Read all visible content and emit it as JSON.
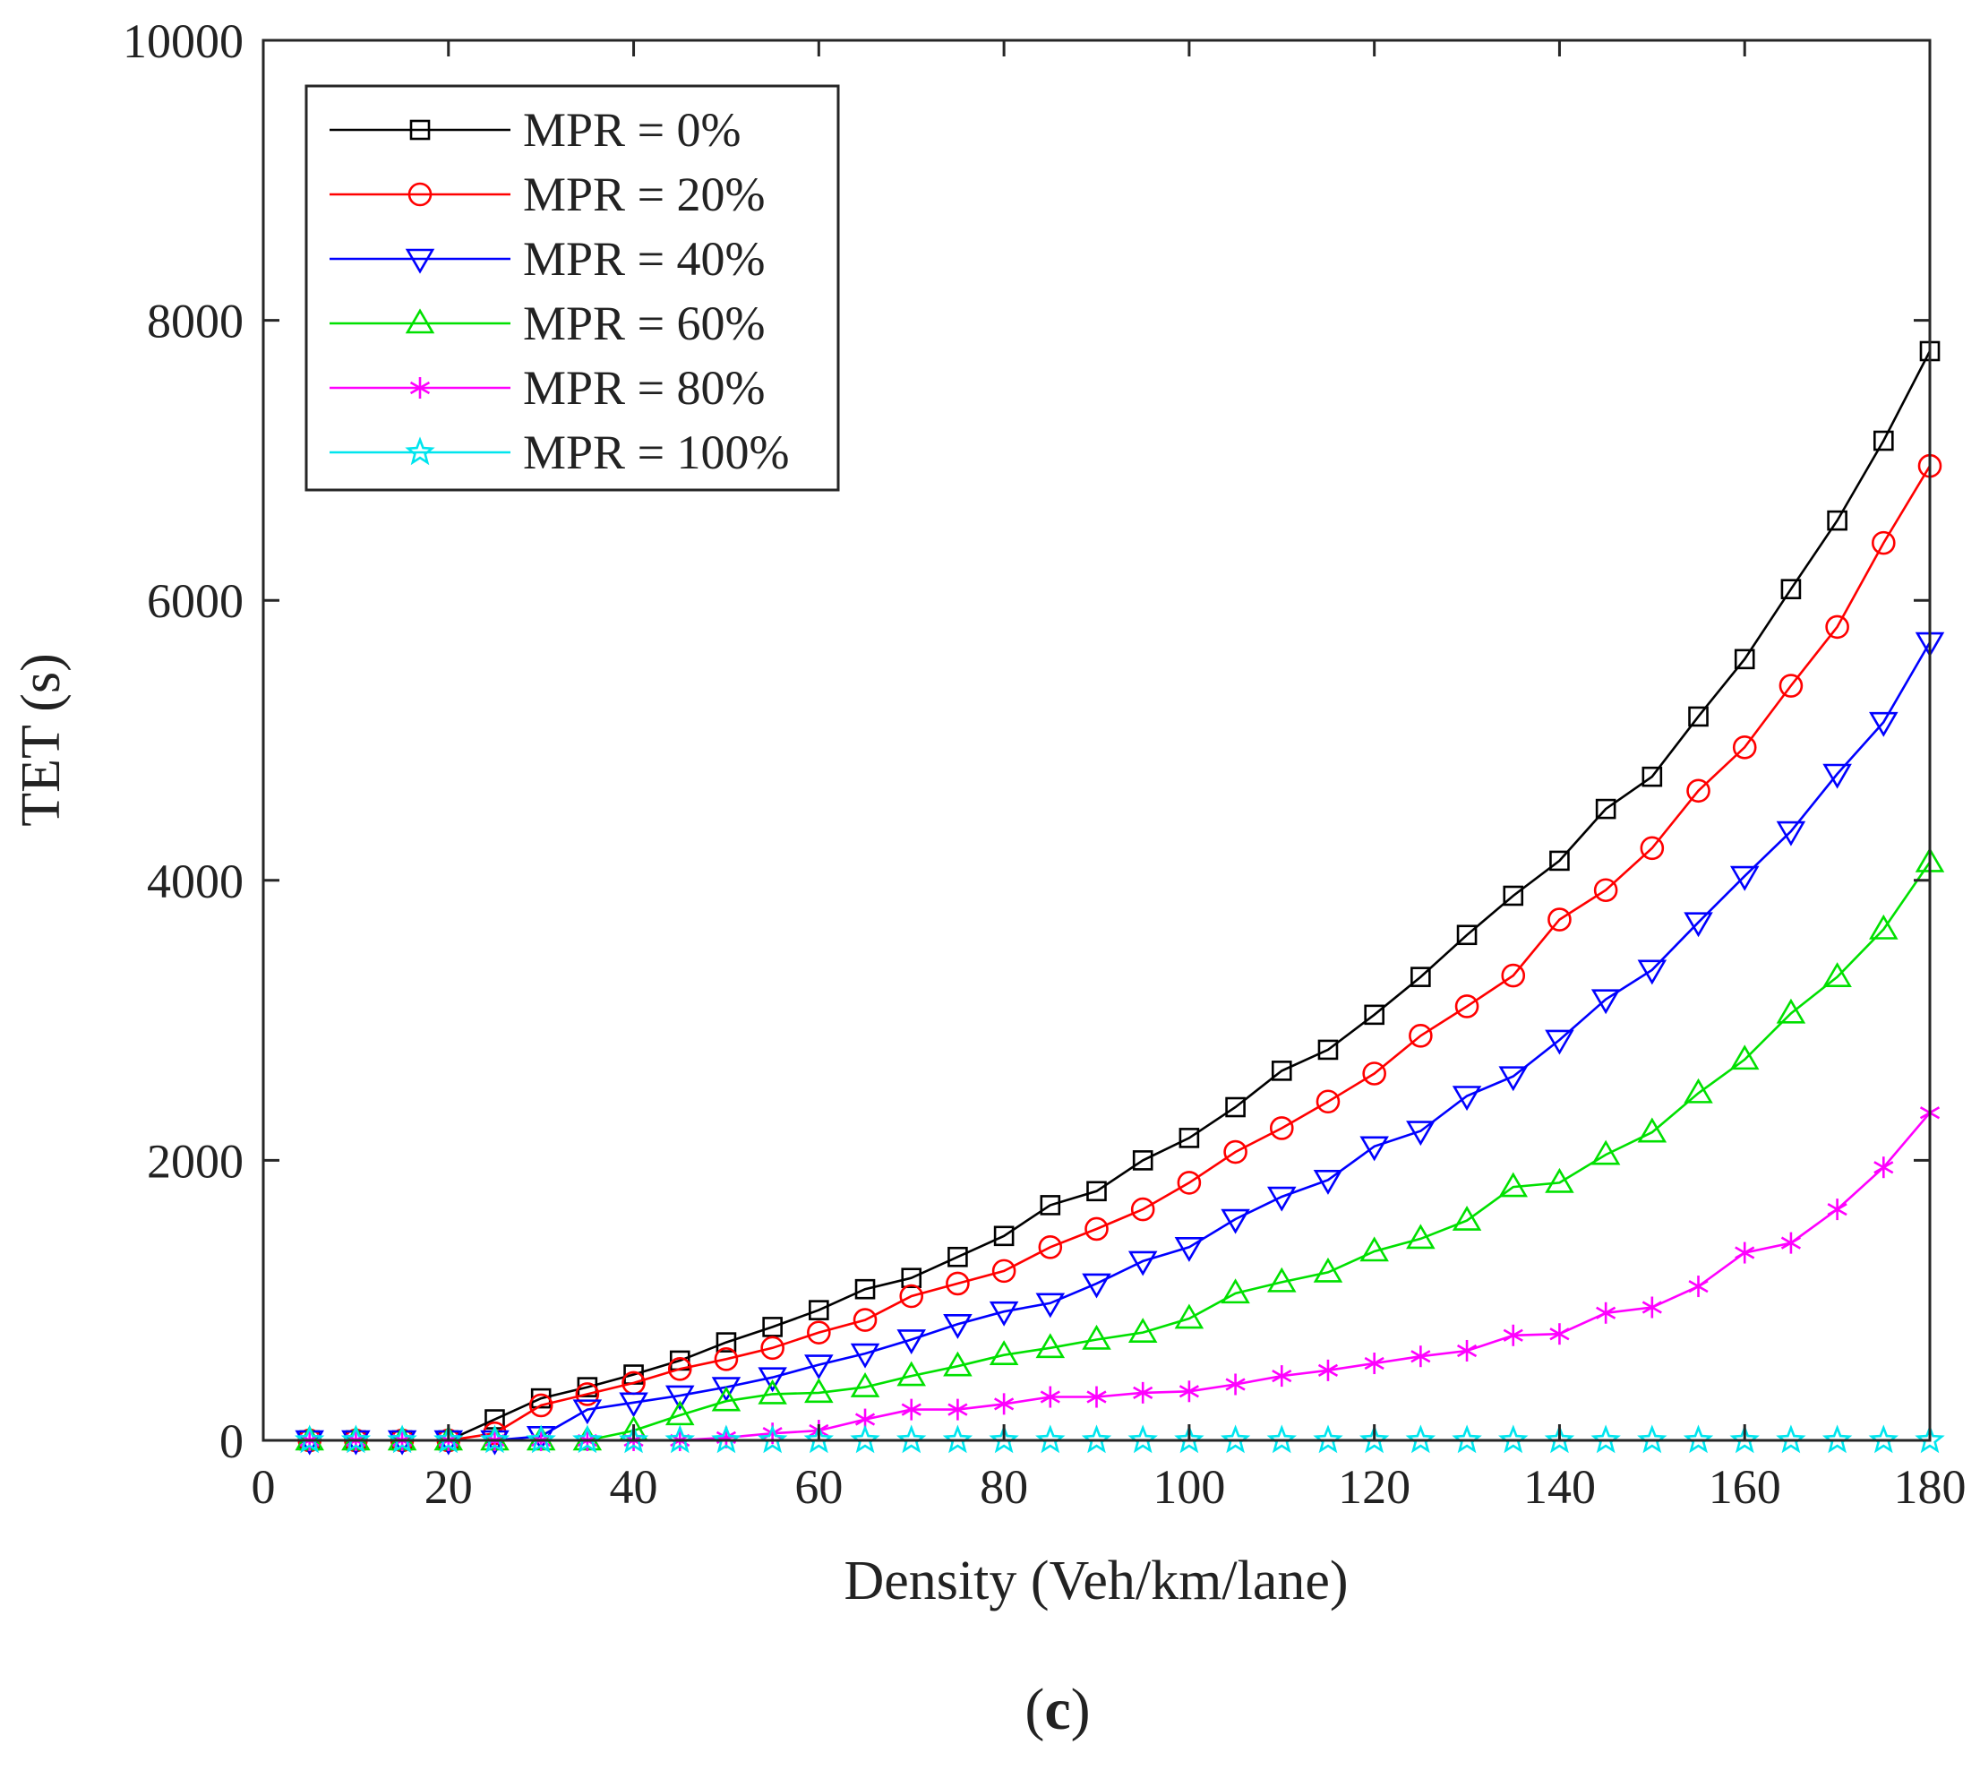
{
  "chart_data": {
    "type": "line",
    "title": "",
    "xlabel": "Density (Veh/km/lane)",
    "ylabel": "TET (s)",
    "xlim": [
      0,
      180
    ],
    "ylim": [
      0,
      10000
    ],
    "x_ticks": [
      0,
      20,
      40,
      60,
      80,
      100,
      120,
      140,
      160,
      180
    ],
    "y_ticks": [
      0,
      2000,
      4000,
      6000,
      8000,
      10000
    ],
    "grid": false,
    "legend_position": "top-left",
    "panel_label_prefix": "(",
    "panel_label_letter": "c",
    "panel_label_suffix": ")",
    "x": [
      5,
      10,
      15,
      20,
      25,
      30,
      35,
      40,
      45,
      50,
      55,
      60,
      65,
      70,
      75,
      80,
      85,
      90,
      95,
      100,
      105,
      110,
      115,
      120,
      125,
      130,
      135,
      140,
      145,
      150,
      155,
      160,
      165,
      170,
      175,
      180
    ],
    "series": [
      {
        "name": "MPR = 0%",
        "color": "#000000",
        "marker": "square",
        "values": [
          0,
          0,
          0,
          0,
          150,
          300,
          380,
          470,
          570,
          700,
          810,
          930,
          1080,
          1160,
          1310,
          1460,
          1680,
          1780,
          2000,
          2160,
          2380,
          2640,
          2790,
          3040,
          3310,
          3610,
          3890,
          4140,
          4510,
          4740,
          5170,
          5580,
          6080,
          6570,
          7140,
          7780
        ]
      },
      {
        "name": "MPR = 20%",
        "color": "#ff0000",
        "marker": "circle",
        "values": [
          0,
          0,
          0,
          0,
          50,
          250,
          330,
          410,
          510,
          580,
          660,
          770,
          860,
          1030,
          1120,
          1210,
          1380,
          1510,
          1650,
          1840,
          2060,
          2230,
          2420,
          2620,
          2890,
          3100,
          3320,
          3720,
          3930,
          4230,
          4640,
          4950,
          5390,
          5810,
          6410,
          6960
        ]
      },
      {
        "name": "MPR = 40%",
        "color": "#0000ff",
        "marker": "triangle-down",
        "values": [
          0,
          0,
          0,
          0,
          0,
          30,
          220,
          270,
          320,
          380,
          450,
          540,
          620,
          720,
          830,
          920,
          980,
          1120,
          1280,
          1380,
          1580,
          1740,
          1860,
          2100,
          2210,
          2460,
          2600,
          2860,
          3150,
          3360,
          3700,
          4030,
          4350,
          4760,
          5130,
          5700
        ]
      },
      {
        "name": "MPR = 60%",
        "color": "#00e000",
        "marker": "triangle-up",
        "values": [
          0,
          0,
          0,
          0,
          0,
          0,
          0,
          70,
          180,
          280,
          330,
          340,
          380,
          460,
          530,
          610,
          660,
          720,
          770,
          870,
          1050,
          1130,
          1200,
          1350,
          1440,
          1570,
          1810,
          1840,
          2040,
          2200,
          2480,
          2720,
          3050,
          3310,
          3650,
          4130
        ]
      },
      {
        "name": "MPR = 80%",
        "color": "#ff00ff",
        "marker": "asterisk",
        "values": [
          0,
          0,
          0,
          0,
          0,
          0,
          0,
          0,
          0,
          20,
          50,
          70,
          150,
          220,
          220,
          260,
          310,
          310,
          340,
          350,
          400,
          460,
          500,
          550,
          600,
          640,
          750,
          760,
          910,
          950,
          1100,
          1340,
          1410,
          1650,
          1950,
          2340
        ]
      },
      {
        "name": "MPR = 100%",
        "color": "#00e5ee",
        "marker": "star",
        "values": [
          0,
          0,
          0,
          0,
          0,
          0,
          0,
          0,
          0,
          0,
          0,
          0,
          0,
          0,
          0,
          0,
          0,
          0,
          0,
          0,
          0,
          0,
          0,
          0,
          0,
          0,
          0,
          0,
          0,
          0,
          0,
          0,
          0,
          0,
          0,
          0
        ]
      }
    ]
  }
}
